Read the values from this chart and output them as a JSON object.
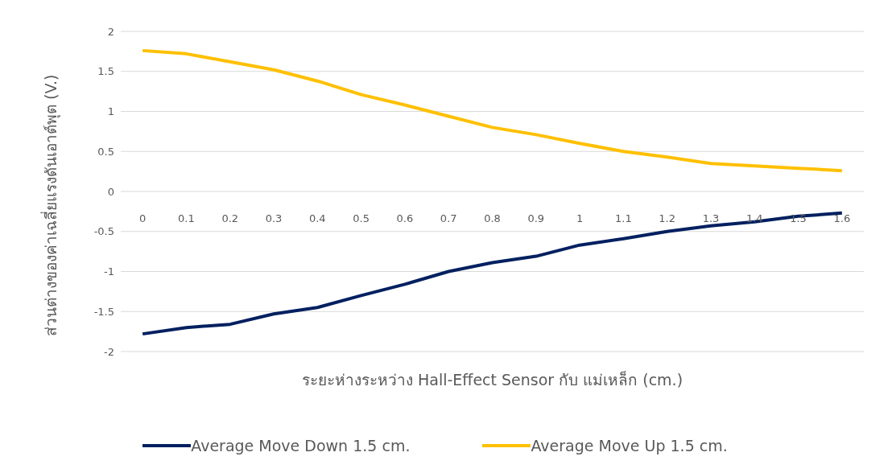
{
  "chart_data": {
    "type": "line",
    "xlabel": "ระยะห่างระหว่าง Hall-Effect Sensor กับ แม่เหล็ก (cm.)",
    "ylabel": "ส่วนต่างของค่าเฉลี่ยแรงดันเอาต์พุต (V.)",
    "categories": [
      "0",
      "0.1",
      "0.2",
      "0.3",
      "0.4",
      "0.5",
      "0.6",
      "0.7",
      "0.8",
      "0.9",
      "1",
      "1.1",
      "1.2",
      "1.3",
      "1.4",
      "1.5",
      "1.6"
    ],
    "series": [
      {
        "name": "Average Move Down 1.5 cm.",
        "color": "#002060",
        "values": [
          -1.78,
          -1.7,
          -1.66,
          -1.53,
          -1.45,
          -1.3,
          -1.16,
          -1.0,
          -0.89,
          -0.81,
          -0.67,
          -0.59,
          -0.5,
          -0.43,
          -0.38,
          -0.31,
          -0.27
        ]
      },
      {
        "name": "Average Move Up 1.5 cm.",
        "color": "#ffc000",
        "values": [
          1.76,
          1.72,
          1.62,
          1.52,
          1.38,
          1.21,
          1.08,
          0.94,
          0.8,
          0.71,
          0.6,
          0.5,
          0.43,
          0.35,
          0.32,
          0.29,
          0.26
        ]
      }
    ],
    "ylim": [
      -2,
      2
    ],
    "yticks": [
      -2,
      -1.5,
      -1,
      -0.5,
      0,
      0.5,
      1,
      1.5,
      2
    ],
    "grid": "y",
    "legend": "bottom",
    "marker": "none",
    "line_style": "solid"
  }
}
